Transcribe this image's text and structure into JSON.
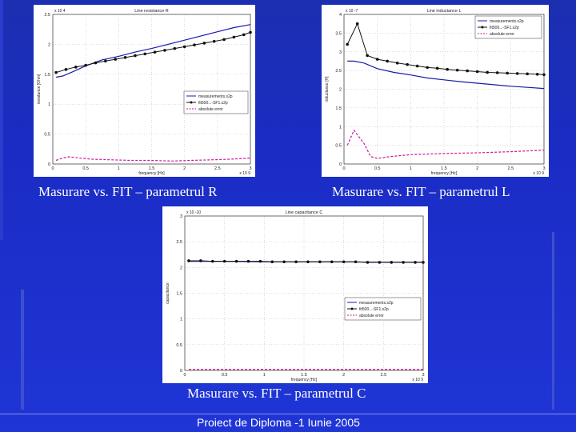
{
  "slide": {
    "caption_r": "Masurare vs. FIT – parametrul R",
    "caption_l": "Masurare vs. FIT – parametrul L",
    "caption_c": "Masurare vs. FIT – parametrul C",
    "footer": "Proiect de Diploma -1 Iunie 2005"
  },
  "chart_data": [
    {
      "type": "line",
      "title": "Line resistance R",
      "xlabel": "frequency [Hz]",
      "ylabel": "resistance [Ohm]",
      "x_exponent": "x 10^9",
      "y_exponent": "x 10^4",
      "xlim": [
        0,
        3
      ],
      "ylim": [
        0,
        2.5
      ],
      "xticks": [
        "0",
        "0.5",
        "1",
        "1.5",
        "2",
        "2.5",
        "3"
      ],
      "yticks": [
        "0",
        "0.5",
        "1",
        "1.5",
        "2",
        "2.5"
      ],
      "legend": "center-right",
      "grid": true,
      "series": [
        {
          "name": "measurements.s2p",
          "color": "#1a1aa8",
          "x": [
            0.05,
            0.15,
            0.3,
            0.5,
            0.75,
            1.0,
            1.25,
            1.5,
            1.75,
            2.0,
            2.25,
            2.5,
            2.75,
            3.0
          ],
          "y": [
            1.45,
            1.47,
            1.54,
            1.64,
            1.74,
            1.8,
            1.87,
            1.93,
            2.0,
            2.07,
            2.14,
            2.21,
            2.28,
            2.33
          ]
        },
        {
          "name": "fit500...-SF1.s2p",
          "color": "#111111",
          "markers": true,
          "x": [
            0.05,
            0.2,
            0.35,
            0.5,
            0.65,
            0.8,
            0.95,
            1.1,
            1.25,
            1.4,
            1.55,
            1.7,
            1.85,
            2.0,
            2.15,
            2.3,
            2.45,
            2.6,
            2.75,
            2.9,
            3.0
          ],
          "y": [
            1.53,
            1.58,
            1.62,
            1.65,
            1.69,
            1.72,
            1.75,
            1.78,
            1.81,
            1.84,
            1.87,
            1.9,
            1.93,
            1.96,
            1.99,
            2.02,
            2.05,
            2.08,
            2.12,
            2.16,
            2.2
          ]
        },
        {
          "name": "absolute error",
          "color": "#d0109a",
          "dashed": true,
          "x": [
            0.05,
            0.15,
            0.25,
            0.4,
            0.6,
            0.9,
            1.2,
            1.5,
            1.8,
            2.1,
            2.4,
            2.7,
            3.0
          ],
          "y": [
            0.06,
            0.1,
            0.12,
            0.1,
            0.08,
            0.07,
            0.06,
            0.06,
            0.05,
            0.06,
            0.07,
            0.08,
            0.1
          ]
        }
      ]
    },
    {
      "type": "line",
      "title": "Line inductance L",
      "xlabel": "frequency [Hz]",
      "ylabel": "inductance [H]",
      "x_exponent": "x 10^9",
      "y_exponent": "x 10^-7",
      "xlim": [
        0,
        3
      ],
      "ylim": [
        0,
        4
      ],
      "xticks": [
        "0",
        "0.5",
        "1",
        "1.5",
        "2",
        "2.5",
        "3"
      ],
      "yticks": [
        "0",
        "0.5",
        "1",
        "1.5",
        "2",
        "2.5",
        "3",
        "3.5",
        "4"
      ],
      "legend": "top-right",
      "grid": true,
      "series": [
        {
          "name": "measurements.s2p",
          "color": "#1a1aa8",
          "x": [
            0.05,
            0.15,
            0.3,
            0.5,
            0.75,
            1.0,
            1.25,
            1.5,
            1.75,
            2.0,
            2.25,
            2.5,
            2.75,
            3.0
          ],
          "y": [
            2.75,
            2.75,
            2.7,
            2.55,
            2.45,
            2.38,
            2.3,
            2.25,
            2.2,
            2.16,
            2.12,
            2.08,
            2.05,
            2.02
          ]
        },
        {
          "name": "fit500...-SF1.s2p",
          "color": "#111111",
          "markers": true,
          "x": [
            0.05,
            0.2,
            0.35,
            0.5,
            0.65,
            0.8,
            0.95,
            1.1,
            1.25,
            1.4,
            1.55,
            1.7,
            1.85,
            2.0,
            2.15,
            2.3,
            2.45,
            2.6,
            2.75,
            2.9,
            3.0
          ],
          "y": [
            3.2,
            3.75,
            2.9,
            2.8,
            2.75,
            2.7,
            2.66,
            2.62,
            2.58,
            2.56,
            2.53,
            2.51,
            2.49,
            2.47,
            2.45,
            2.44,
            2.43,
            2.42,
            2.41,
            2.4,
            2.39
          ]
        },
        {
          "name": "absolute error",
          "color": "#d0109a",
          "dashed": true,
          "x": [
            0.05,
            0.15,
            0.3,
            0.4,
            0.5,
            0.7,
            1.0,
            1.5,
            2.0,
            2.5,
            3.0
          ],
          "y": [
            0.5,
            0.9,
            0.55,
            0.2,
            0.15,
            0.2,
            0.25,
            0.28,
            0.3,
            0.33,
            0.37
          ]
        }
      ]
    },
    {
      "type": "line",
      "title": "Line capacitance C",
      "xlabel": "frequency [Hz]",
      "ylabel": "capacitance",
      "x_exponent": "x 10^9",
      "y_exponent": "x 10^-10",
      "xlim": [
        0,
        3
      ],
      "ylim": [
        0,
        3
      ],
      "xticks": [
        "0",
        "0.5",
        "1",
        "1.5",
        "2",
        "2.5",
        "3"
      ],
      "yticks": [
        "0",
        "0.5",
        "1",
        "1.5",
        "2",
        "2.5",
        "3"
      ],
      "legend": "center-right",
      "grid": true,
      "series": [
        {
          "name": "measurements.s2p",
          "color": "#1a1aa8",
          "x": [
            0.05,
            0.5,
            1.0,
            1.5,
            2.0,
            2.5,
            3.0
          ],
          "y": [
            2.12,
            2.12,
            2.11,
            2.11,
            2.11,
            2.1,
            2.1
          ]
        },
        {
          "name": "fit500...-SF1.s2p",
          "color": "#111111",
          "markers": true,
          "x": [
            0.05,
            0.2,
            0.35,
            0.5,
            0.65,
            0.8,
            0.95,
            1.1,
            1.25,
            1.4,
            1.55,
            1.7,
            1.85,
            2.0,
            2.15,
            2.3,
            2.45,
            2.6,
            2.75,
            2.9,
            3.0
          ],
          "y": [
            2.13,
            2.13,
            2.12,
            2.12,
            2.12,
            2.12,
            2.12,
            2.11,
            2.11,
            2.11,
            2.11,
            2.11,
            2.11,
            2.11,
            2.11,
            2.1,
            2.1,
            2.1,
            2.1,
            2.1,
            2.1
          ]
        },
        {
          "name": "absolute error",
          "color": "#d0109a",
          "dashed": true,
          "x": [
            0.05,
            0.5,
            1.0,
            1.5,
            2.0,
            2.5,
            3.0
          ],
          "y": [
            0.02,
            0.02,
            0.02,
            0.02,
            0.02,
            0.02,
            0.02
          ]
        }
      ]
    }
  ]
}
